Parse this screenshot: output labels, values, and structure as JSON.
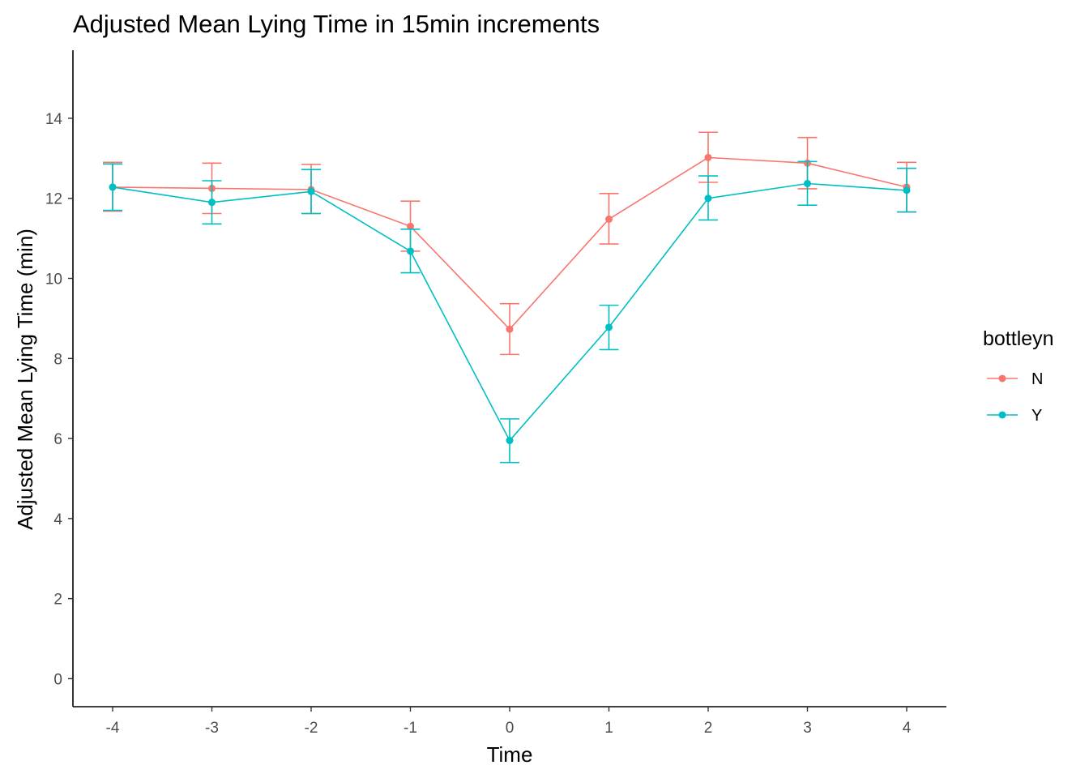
{
  "chart_data": {
    "type": "line",
    "title": "Adjusted Mean Lying Time in 15min increments",
    "xlabel": "Time",
    "ylabel": "Adjusted Mean Lying Time (min)",
    "x": [
      -4,
      -3,
      -2,
      -1,
      0,
      1,
      2,
      3,
      4
    ],
    "x_ticks": [
      "-4",
      "-3",
      "-2",
      "-1",
      "0",
      "1",
      "2",
      "3",
      "4"
    ],
    "y_ticks": [
      "0",
      "2",
      "4",
      "6",
      "8",
      "10",
      "12",
      "14"
    ],
    "xlim": [
      -4.4,
      4.4
    ],
    "ylim": [
      -0.7,
      15.7
    ],
    "grid": false,
    "legend": {
      "title": "bottleyn",
      "position": "right"
    },
    "series": [
      {
        "name": "N",
        "color": "#F8766D",
        "values": [
          12.28,
          12.25,
          12.22,
          11.3,
          8.73,
          11.48,
          13.02,
          12.88,
          12.28
        ],
        "err_low": [
          11.68,
          11.62,
          11.62,
          10.68,
          8.1,
          10.86,
          12.4,
          12.24,
          11.66
        ],
        "err_high": [
          12.9,
          12.88,
          12.85,
          11.93,
          9.37,
          12.12,
          13.65,
          13.52,
          12.9
        ]
      },
      {
        "name": "Y",
        "color": "#00BFC4",
        "values": [
          12.28,
          11.9,
          12.17,
          10.68,
          5.95,
          8.78,
          12.0,
          12.37,
          12.2
        ],
        "err_low": [
          11.7,
          11.36,
          11.62,
          10.14,
          5.4,
          8.22,
          11.46,
          11.83,
          11.66
        ],
        "err_high": [
          12.86,
          12.44,
          12.72,
          11.23,
          6.49,
          9.33,
          12.56,
          12.92,
          12.75
        ]
      }
    ]
  }
}
